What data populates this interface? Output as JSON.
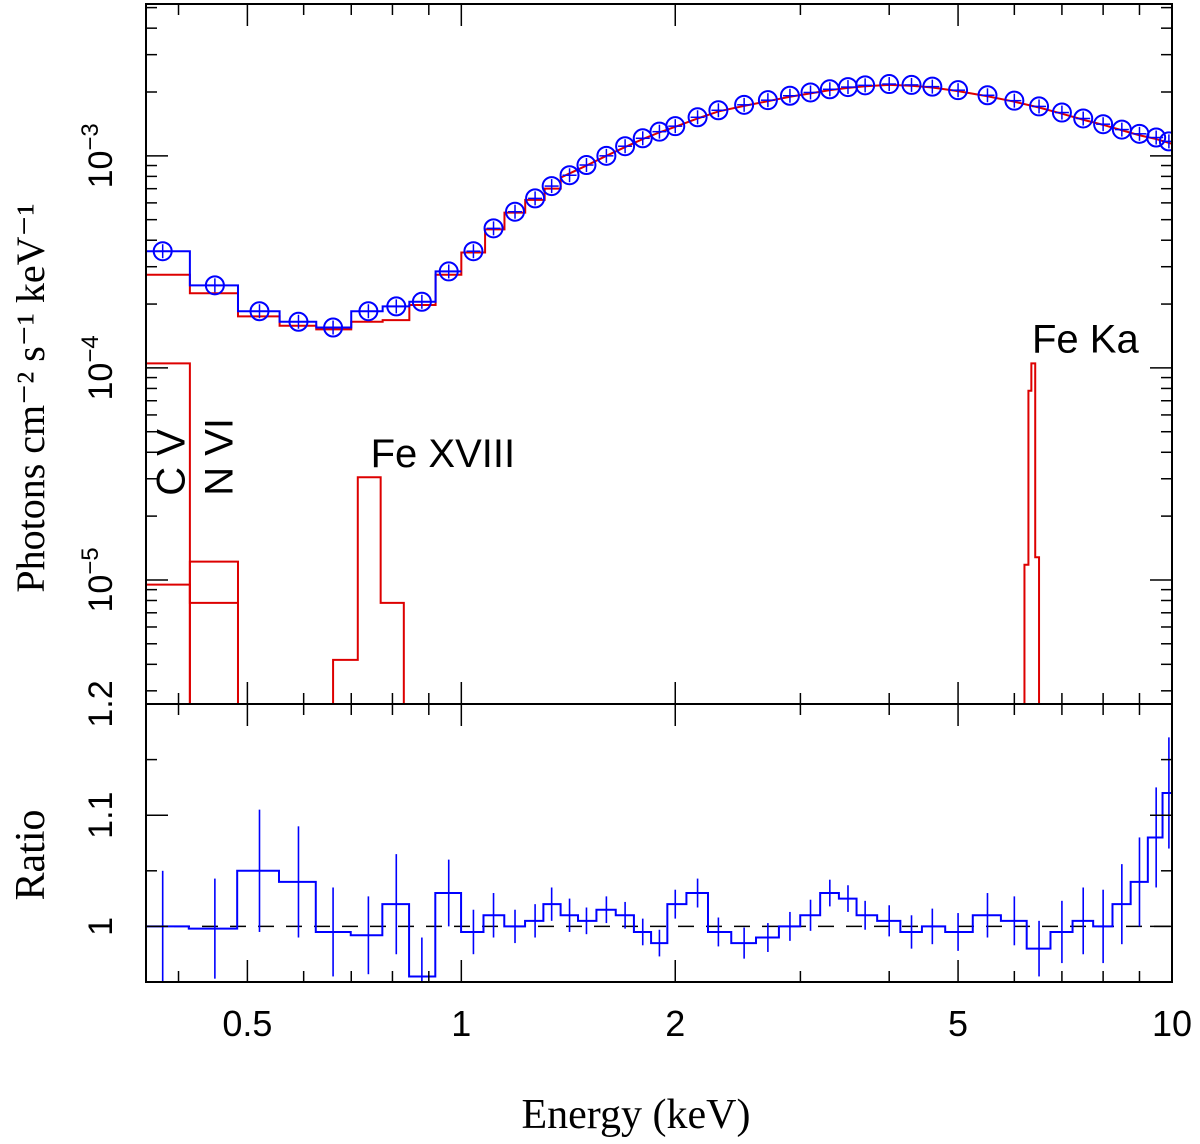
{
  "chart_data": {
    "type": "line",
    "figure": {
      "xlabel": "Energy (keV)",
      "x_scale": "log",
      "xlim": [
        0.36,
        10
      ],
      "x_tick_labels": [
        {
          "value": 0.5,
          "label": "0.5"
        },
        {
          "value": 1,
          "label": "1"
        },
        {
          "value": 2,
          "label": "2"
        },
        {
          "value": 5,
          "label": "5"
        },
        {
          "value": 10,
          "label": "10"
        }
      ]
    },
    "top_panel": {
      "ylabel": "Photons cm⁻² s⁻¹ keV⁻¹",
      "y_scale": "log",
      "ylim": [
        2.6e-06,
        0.0052
      ],
      "y_tick_labels": [
        {
          "value": 1e-05,
          "base": "10",
          "exp": "−5"
        },
        {
          "value": 0.0001,
          "base": "10",
          "exp": "−4"
        },
        {
          "value": 0.001,
          "base": "10",
          "exp": "−3"
        }
      ],
      "line_labels": [
        {
          "text": "C V",
          "x": 0.39,
          "y": 3.1e-05,
          "rotated": true
        },
        {
          "text": "N VI",
          "x": 0.455,
          "y": 3.1e-05,
          "rotated": true
        },
        {
          "text": "Fe XVIII",
          "x": 0.76,
          "y": 3.4e-05,
          "rotated": false
        },
        {
          "text": "Fe Ka",
          "x": 6.4,
          "y": 0.000118,
          "rotated": false
        }
      ],
      "data_points": {
        "name": "data",
        "color": "#0000ff",
        "x": [
          0.38,
          0.45,
          0.52,
          0.59,
          0.66,
          0.74,
          0.81,
          0.88,
          0.96,
          1.04,
          1.11,
          1.19,
          1.27,
          1.34,
          1.42,
          1.5,
          1.6,
          1.7,
          1.8,
          1.9,
          2.0,
          2.15,
          2.3,
          2.5,
          2.7,
          2.9,
          3.1,
          3.3,
          3.5,
          3.7,
          4.0,
          4.3,
          4.6,
          5.0,
          5.5,
          6.0,
          6.5,
          7.0,
          7.5,
          8.0,
          8.5,
          9.0,
          9.5,
          9.9
        ],
        "y": [
          0.000355,
          0.000245,
          0.000185,
          0.000165,
          0.000155,
          0.000185,
          0.000195,
          0.000205,
          0.000285,
          0.000355,
          0.000455,
          0.000545,
          0.00063,
          0.00072,
          0.00081,
          0.000905,
          0.001,
          0.00111,
          0.00121,
          0.0013,
          0.00138,
          0.00152,
          0.00164,
          0.00174,
          0.00183,
          0.00192,
          0.00199,
          0.00206,
          0.00211,
          0.00215,
          0.00218,
          0.00216,
          0.00212,
          0.00204,
          0.00193,
          0.00182,
          0.00171,
          0.0016,
          0.0015,
          0.00141,
          0.00133,
          0.00127,
          0.00122,
          0.00117
        ]
      },
      "data_histogram": {
        "name": "data-step",
        "color": "#0000ff",
        "edges": [
          0.36,
          0.415,
          0.485,
          0.555,
          0.625,
          0.7,
          0.775,
          0.845,
          0.92,
          1.0
        ],
        "values": [
          0.000355,
          0.000245,
          0.000185,
          0.000165,
          0.000155,
          0.000185,
          0.000195,
          0.000205,
          0.000285
        ]
      },
      "model_total": {
        "name": "model",
        "color": "#dd0000",
        "edges": [
          0.36,
          0.415,
          0.485,
          0.555,
          0.625,
          0.7,
          0.775,
          0.845,
          0.92,
          1.0,
          1.08,
          1.15,
          1.23,
          1.31,
          1.38
        ],
        "values": [
          0.000275,
          0.000225,
          0.000175,
          0.000158,
          0.000152,
          0.000165,
          0.000168,
          0.000198,
          0.000275,
          0.00035,
          0.00045,
          0.00054,
          0.00062,
          0.0007
        ],
        "smooth_x": [
          1.38,
          1.5,
          1.6,
          1.7,
          1.8,
          1.9,
          2.0,
          2.15,
          2.3,
          2.5,
          2.7,
          2.9,
          3.1,
          3.3,
          3.5,
          3.7,
          4.0,
          4.3,
          4.6,
          5.0,
          5.5,
          6.0,
          6.5,
          7.0,
          7.5,
          8.0,
          8.5,
          9.0,
          9.5,
          10.0
        ],
        "smooth_y": [
          0.00079,
          0.0009,
          0.001,
          0.0011,
          0.0012,
          0.00129,
          0.00137,
          0.0015,
          0.00162,
          0.00172,
          0.00181,
          0.0019,
          0.00197,
          0.00204,
          0.00209,
          0.00213,
          0.00216,
          0.00214,
          0.0021,
          0.00202,
          0.00191,
          0.0018,
          0.00169,
          0.00158,
          0.00148,
          0.0014,
          0.00132,
          0.00125,
          0.0012,
          0.00114
        ]
      },
      "line_components": [
        {
          "name": "C V",
          "color": "#dd0000",
          "edges": [
            0.36,
            0.415
          ],
          "values": [
            0.000105
          ],
          "floor": 2.6e-06
        },
        {
          "name": "continuum-step",
          "color": "#dd0000",
          "edges": [
            0.36,
            0.415,
            0.485
          ],
          "values": [
            9.5e-06,
            7.8e-06
          ],
          "floor": 2.6e-06
        },
        {
          "name": "N VI",
          "color": "#dd0000",
          "edges": [
            0.415,
            0.485
          ],
          "values": [
            1.22e-05
          ],
          "floor": 2.6e-06
        },
        {
          "name": "Fe XVIII",
          "color": "#dd0000",
          "edges": [
            0.66,
            0.715,
            0.77,
            0.83,
            0.885
          ],
          "values": [
            4.2e-06,
            3.05e-05,
            7.8e-06,
            2.6e-06
          ],
          "floor": 2.6e-06
        },
        {
          "name": "Fe Ka",
          "color": "#dd0000",
          "edges": [
            6.2,
            6.28,
            6.34,
            6.42,
            6.5
          ],
          "values": [
            1.18e-05,
            7.8e-05,
            0.000105,
            1.28e-05
          ],
          "floor": 2.6e-06
        }
      ]
    },
    "bottom_panel": {
      "ylabel": "Ratio",
      "ylim": [
        0.95,
        1.2
      ],
      "y_tick_labels": [
        {
          "value": 1.0,
          "label": "1"
        },
        {
          "value": 1.1,
          "label": "1.1"
        },
        {
          "value": 1.2,
          "label": "1.2"
        }
      ],
      "reference_line": 1.0,
      "ratio": {
        "name": "ratio",
        "color": "#0000ff",
        "x": [
          0.38,
          0.45,
          0.52,
          0.59,
          0.66,
          0.74,
          0.81,
          0.88,
          0.96,
          1.04,
          1.11,
          1.19,
          1.27,
          1.34,
          1.42,
          1.5,
          1.6,
          1.7,
          1.8,
          1.9,
          2.0,
          2.15,
          2.3,
          2.5,
          2.7,
          2.9,
          3.1,
          3.3,
          3.5,
          3.7,
          4.0,
          4.3,
          4.6,
          5.0,
          5.5,
          6.0,
          6.5,
          7.0,
          7.5,
          8.0,
          8.5,
          9.0,
          9.5,
          9.9
        ],
        "y": [
          1.0,
          0.998,
          1.05,
          1.04,
          0.995,
          0.992,
          1.02,
          0.955,
          1.03,
          0.995,
          1.01,
          1.0,
          1.005,
          1.02,
          1.01,
          1.005,
          1.015,
          1.01,
          0.995,
          0.985,
          1.02,
          1.03,
          0.995,
          0.985,
          0.99,
          1.0,
          1.01,
          1.03,
          1.025,
          1.01,
          1.005,
          0.995,
          1.0,
          0.995,
          1.01,
          1.005,
          0.98,
          0.995,
          1.005,
          1.0,
          1.02,
          1.04,
          1.08,
          1.12
        ],
        "err": [
          0.05,
          0.045,
          0.055,
          0.05,
          0.04,
          0.035,
          0.045,
          0.035,
          0.03,
          0.02,
          0.02,
          0.015,
          0.015,
          0.015,
          0.015,
          0.012,
          0.012,
          0.012,
          0.012,
          0.012,
          0.013,
          0.013,
          0.013,
          0.014,
          0.013,
          0.013,
          0.014,
          0.012,
          0.012,
          0.013,
          0.014,
          0.015,
          0.016,
          0.017,
          0.02,
          0.022,
          0.025,
          0.028,
          0.03,
          0.033,
          0.036,
          0.04,
          0.045,
          0.05
        ]
      }
    }
  }
}
